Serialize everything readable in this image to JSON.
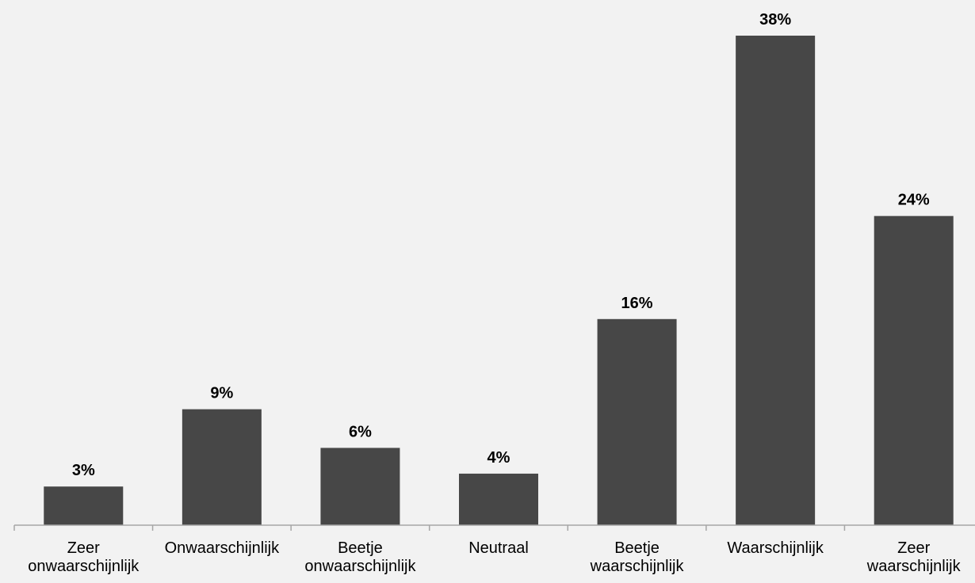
{
  "chart_data": {
    "type": "bar",
    "categories": [
      [
        "Zeer",
        "onwaarschijnlijk"
      ],
      [
        "Onwaarschijnlijk"
      ],
      [
        "Beetje",
        "onwaarschijnlijk"
      ],
      [
        "Neutraal"
      ],
      [
        "Beetje",
        "waarschijnlijk"
      ],
      [
        "Waarschijnlijk"
      ],
      [
        "Zeer",
        "waarschijnlijk"
      ]
    ],
    "values": [
      3,
      9,
      6,
      4,
      16,
      38,
      24
    ],
    "value_labels": [
      "3%",
      "9%",
      "6%",
      "4%",
      "16%",
      "38%",
      "24%"
    ],
    "ylim": [
      0,
      38
    ],
    "grid": false,
    "legend": "none",
    "colors": {
      "bar": "#474747",
      "axis": "#a6a6a6",
      "background": "#f2f2f2",
      "text": "#000000"
    }
  }
}
